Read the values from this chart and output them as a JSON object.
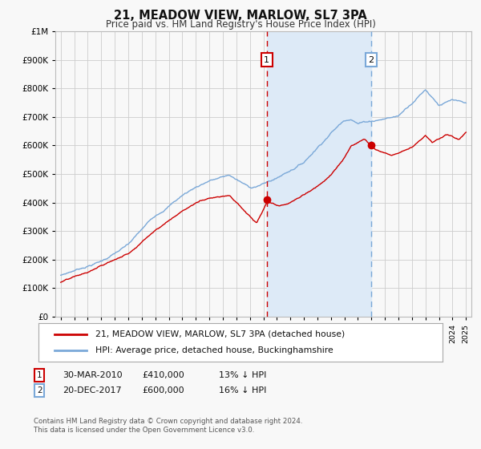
{
  "title": "21, MEADOW VIEW, MARLOW, SL7 3PA",
  "subtitle": "Price paid vs. HM Land Registry's House Price Index (HPI)",
  "legend_line1": "21, MEADOW VIEW, MARLOW, SL7 3PA (detached house)",
  "legend_line2": "HPI: Average price, detached house, Buckinghamshire",
  "annotation1_label": "1",
  "annotation1_date": "30-MAR-2010",
  "annotation1_price": "£410,000",
  "annotation1_hpi": "13% ↓ HPI",
  "annotation2_label": "2",
  "annotation2_date": "20-DEC-2017",
  "annotation2_price": "£600,000",
  "annotation2_hpi": "16% ↓ HPI",
  "footnote1": "Contains HM Land Registry data © Crown copyright and database right 2024.",
  "footnote2": "This data is licensed under the Open Government Licence v3.0.",
  "hpi_color": "#7aa8d8",
  "price_color": "#cc0000",
  "vline1_color": "#cc0000",
  "vline2_color": "#7aa8d8",
  "shade_color": "#ddeaf7",
  "background_color": "#f8f8f8",
  "grid_color": "#cccccc",
  "ylim": [
    0,
    1000000
  ],
  "yticks": [
    0,
    100000,
    200000,
    300000,
    400000,
    500000,
    600000,
    700000,
    800000,
    900000,
    1000000
  ],
  "year_start": 1995,
  "year_end": 2025,
  "sale1_year": 2010.25,
  "sale1_price": 410000,
  "sale2_year": 2017.97,
  "sale2_price": 600000
}
